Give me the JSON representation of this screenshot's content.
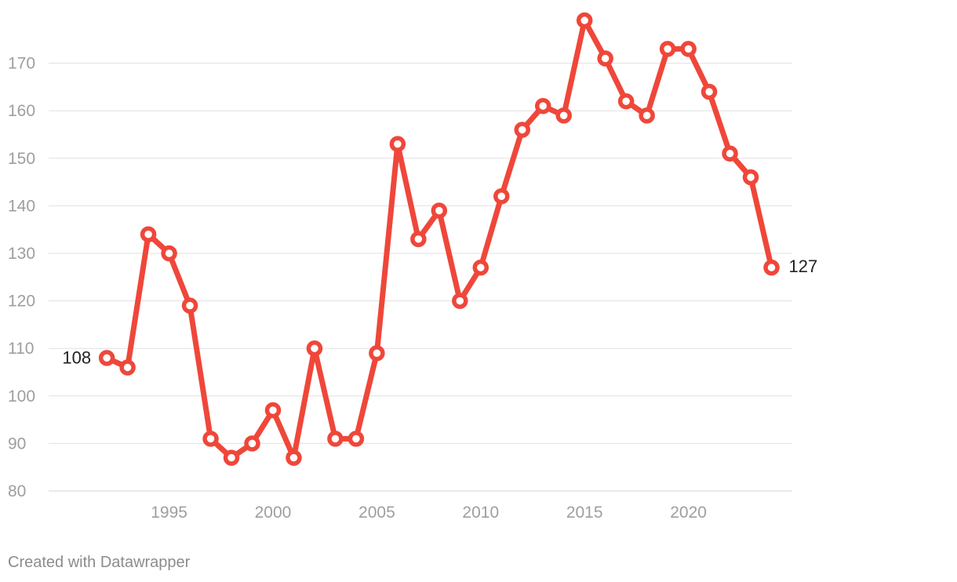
{
  "chart_data": {
    "type": "line",
    "x": [
      1992,
      1993,
      1994,
      1995,
      1996,
      1997,
      1998,
      1999,
      2000,
      2001,
      2002,
      2003,
      2004,
      2005,
      2006,
      2007,
      2008,
      2009,
      2010,
      2011,
      2012,
      2013,
      2014,
      2015,
      2016,
      2017,
      2018,
      2019,
      2020,
      2021,
      2022,
      2023,
      2024
    ],
    "series": [
      {
        "values": [
          108,
          106,
          134,
          130,
          119,
          91,
          87,
          90,
          97,
          87,
          110,
          91,
          91,
          109,
          153,
          133,
          139,
          120,
          127,
          142,
          156,
          161,
          159,
          179,
          171,
          162,
          159,
          173,
          173,
          164,
          151,
          146,
          127
        ]
      }
    ],
    "end_labels": {
      "first": "108",
      "last": "127"
    },
    "x_ticks": [
      1995,
      2000,
      2005,
      2010,
      2015,
      2020
    ],
    "y_ticks": [
      80,
      90,
      100,
      110,
      120,
      130,
      140,
      150,
      160,
      170
    ],
    "xlim": [
      1989.2,
      2025
    ],
    "ylim": [
      80,
      180
    ],
    "grid": true,
    "line_color": "#ef473a",
    "title": "",
    "xlabel": "",
    "ylabel": ""
  },
  "footer": {
    "credit": "Created with Datawrapper"
  }
}
